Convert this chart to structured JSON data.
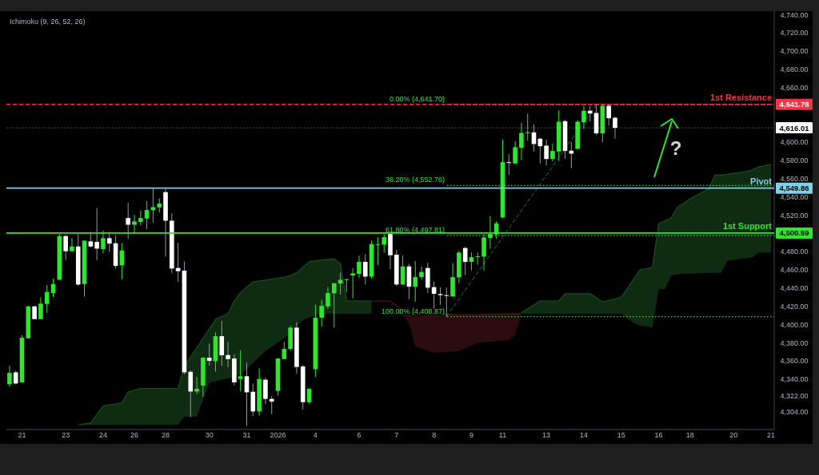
{
  "chart_data": {
    "type": "candlestick",
    "title": "Ichimoku (9, 26, 52, 26)",
    "categories": [
      null,
      null,
      "21",
      null,
      null,
      null,
      null,
      null,
      null,
      "23",
      null,
      null,
      null,
      null,
      null,
      "24",
      null,
      null,
      null,
      null,
      "26",
      null,
      null,
      null,
      null,
      "28",
      null,
      null,
      null,
      null,
      null,
      null,
      "30",
      null,
      null,
      null,
      null,
      null,
      "31",
      null,
      null,
      null,
      null,
      "2026",
      null,
      null,
      null,
      null,
      null,
      "4",
      null,
      null,
      null,
      null,
      null,
      null,
      "6",
      null,
      null,
      null,
      null,
      null,
      "7",
      null,
      null,
      null,
      null,
      null,
      "8",
      null,
      null,
      null,
      null,
      null,
      "9",
      null,
      null,
      null,
      null,
      "11",
      null,
      null,
      null,
      null,
      null,
      null,
      "13",
      null,
      null,
      null,
      null,
      null,
      "14",
      null,
      null,
      null,
      null,
      null,
      "15",
      null,
      null,
      null,
      null,
      null,
      "16",
      null,
      null,
      null,
      null,
      "18",
      null,
      null,
      null,
      null,
      null,
      null,
      "20",
      null,
      null,
      null,
      null,
      null,
      "21"
    ],
    "ohlc": [
      [
        4334.6,
        4355.0,
        4331.7,
        4347.1
      ],
      [
        4347.7,
        4349.2,
        4334.6,
        4335.5
      ],
      [
        4336.7,
        4388.6,
        4336.7,
        4385.7
      ],
      [
        4385.1,
        4420.7,
        4385.1,
        4420.1
      ],
      [
        4420.1,
        4420.7,
        4406.1,
        4406.1
      ],
      [
        4406.1,
        4430.1,
        4406.1,
        4423.1
      ],
      [
        4422.8,
        4443.5,
        4413.1,
        4435.9
      ],
      [
        4434.7,
        4450.5,
        4430.0,
        4444.6
      ],
      [
        4449.3,
        4499.5,
        4449.3,
        4497.2
      ],
      [
        4497.2,
        4499.0,
        4470.9,
        4480.6
      ],
      [
        4480.6,
        4494.9,
        4479.7,
        4485.8
      ],
      [
        4485.8,
        4499.5,
        4442.6,
        4444.1
      ],
      [
        4444.6,
        4492.2,
        4430.9,
        4492.2
      ],
      [
        4491.4,
        4501.9,
        4484.9,
        4485.8
      ],
      [
        4490.8,
        4527.9,
        4470.9,
        4483.5
      ],
      [
        4482.9,
        4503.3,
        4478.2,
        4494.9
      ],
      [
        4494.9,
        4501.9,
        4479.7,
        4489.0
      ],
      [
        4489.3,
        4498.1,
        4461.6,
        4464.5
      ],
      [
        4465.1,
        4489.3,
        4449.9,
        4481.4
      ],
      [
        4517.0,
        4533.7,
        4494.3,
        4509.7
      ],
      [
        4509.7,
        4520.6,
        4499.5,
        4513.3
      ],
      [
        4512.7,
        4525.2,
        4508.9,
        4517.0
      ],
      [
        4516.5,
        4535.7,
        4504.8,
        4525.8
      ],
      [
        4525.5,
        4549.9,
        4512.1,
        4529.0
      ],
      [
        4528.7,
        4538.6,
        4522.9,
        4532.8
      ],
      [
        4545.4,
        4549.9,
        4474.7,
        4514.1
      ],
      [
        4514.1,
        4522.3,
        4456.3,
        4461.6
      ],
      [
        4462.2,
        4490.2,
        4447.0,
        4458.7
      ],
      [
        4459.3,
        4469.5,
        4345.4,
        4347.7
      ],
      [
        4348.3,
        4349.8,
        4298.7,
        4326.7
      ],
      [
        4326.7,
        4342.8,
        4323.8,
        4329.6
      ],
      [
        4333.2,
        4364.4,
        4320.9,
        4363.8
      ],
      [
        4363.8,
        4379.3,
        4355.0,
        4360.3
      ],
      [
        4360.0,
        4391.5,
        4348.6,
        4387.4
      ],
      [
        4387.4,
        4404.1,
        4354.7,
        4366.4
      ],
      [
        4366.7,
        4381.3,
        4353.6,
        4362.3
      ],
      [
        4362.9,
        4367.6,
        4333.2,
        4336.7
      ],
      [
        4340.4,
        4372.0,
        4326.7,
        4343.4
      ],
      [
        4343.4,
        4358.5,
        4289.1,
        4325.8
      ],
      [
        4326.4,
        4335.2,
        4299.9,
        4304.8
      ],
      [
        4304.8,
        4352.1,
        4300.2,
        4340.4
      ],
      [
        4339.6,
        4341.9,
        4312.7,
        4318.6
      ],
      [
        4318.6,
        4322.1,
        4301.6,
        4315.6
      ],
      [
        4327.3,
        4362.9,
        4322.1,
        4362.9
      ],
      [
        4362.3,
        4381.3,
        4362.3,
        4373.4
      ],
      [
        4373.4,
        4398.8,
        4371.1,
        4396.8
      ],
      [
        4396.8,
        4402.6,
        4346.3,
        4353.6
      ],
      [
        4354.2,
        4355.9,
        4306.9,
        4315.0
      ],
      [
        4315.0,
        4330.2,
        4313.3,
        4329.6
      ],
      [
        4351.2,
        4422.2,
        4342.5,
        4407.6
      ],
      [
        4407.6,
        4427.1,
        4397.9,
        4420.7
      ],
      [
        4420.1,
        4441.2,
        4417.2,
        4434.7
      ],
      [
        4434.4,
        4445.5,
        4396.8,
        4445.5
      ],
      [
        4445.2,
        4457.2,
        4433.0,
        4449.3
      ],
      [
        4449.3,
        4450.5,
        4435.9,
        4449.9
      ],
      [
        4454.0,
        4462.2,
        4428.9,
        4456.3
      ],
      [
        4455.7,
        4475.6,
        4451.4,
        4468.9
      ],
      [
        4468.9,
        4477.6,
        4444.1,
        4452.8
      ],
      [
        4452.8,
        4492.2,
        4450.5,
        4488.4
      ],
      [
        4487.8,
        4496.0,
        4465.1,
        4488.4
      ],
      [
        4487.8,
        4499.5,
        4479.1,
        4496.0
      ],
      [
        4499.5,
        4501.0,
        4461.0,
        4476.2
      ],
      [
        4476.8,
        4482.0,
        4442.6,
        4444.1
      ],
      [
        4444.1,
        4476.2,
        4443.5,
        4463.9
      ],
      [
        4463.9,
        4466.8,
        4428.0,
        4441.7
      ],
      [
        4441.7,
        4469.7,
        4425.1,
        4452.2
      ],
      [
        4452.2,
        4463.6,
        4449.3,
        4457.8
      ],
      [
        4462.2,
        4468.0,
        4434.7,
        4440.6
      ],
      [
        4441.2,
        4447.6,
        4417.2,
        4433.9
      ],
      [
        4433.6,
        4441.2,
        4421.6,
        4432.4
      ],
      [
        4432.4,
        4440.6,
        4408.9,
        4431.8
      ],
      [
        4430.9,
        4467.4,
        4430.9,
        4452.2
      ],
      [
        4451.9,
        4481.1,
        4445.5,
        4479.1
      ],
      [
        4484.1,
        4485.8,
        4454.3,
        4468.9
      ],
      [
        4468.9,
        4479.1,
        4459.5,
        4474.1
      ],
      [
        4474.1,
        4479.1,
        4465.9,
        4475.0
      ],
      [
        4474.7,
        4499.5,
        4459.2,
        4495.7
      ],
      [
        4495.1,
        4519.4,
        4483.5,
        4499.5
      ],
      [
        4498.9,
        4513.5,
        4494.3,
        4511.2
      ],
      [
        4517.6,
        4603.1,
        4516.5,
        4578.3
      ],
      [
        4578.3,
        4587.1,
        4564.6,
        4577.5
      ],
      [
        4576.9,
        4601.1,
        4576.9,
        4594.7
      ],
      [
        4594.1,
        4621.5,
        4580.4,
        4610.4
      ],
      [
        4610.4,
        4631.5,
        4601.7,
        4611.0
      ],
      [
        4611.0,
        4619.8,
        4590.0,
        4598.2
      ],
      [
        4604.0,
        4605.2,
        4576.9,
        4595.8
      ],
      [
        4596.4,
        4603.1,
        4574.8,
        4581.8
      ],
      [
        4581.8,
        4598.8,
        4578.9,
        4590.6
      ],
      [
        4590.0,
        4635.2,
        4579.5,
        4622.7
      ],
      [
        4623.3,
        4625.0,
        4582.1,
        4590.6
      ],
      [
        4590.9,
        4600.2,
        4571.6,
        4587.7
      ],
      [
        4592.9,
        4624.5,
        4592.9,
        4622.7
      ],
      [
        4622.1,
        4640.2,
        4614.8,
        4634.7
      ],
      [
        4634.7,
        4640.2,
        4622.7,
        4631.7
      ],
      [
        4632.3,
        4641.7,
        4608.1,
        4609.9
      ],
      [
        4609.9,
        4641.7,
        4600.2,
        4640.2
      ],
      [
        4640.2,
        4641.8,
        4618.3,
        4626.5
      ],
      [
        4627.1,
        4628.0,
        4604.0,
        4616.0
      ],
      null,
      null,
      null,
      null,
      null,
      null,
      null,
      null,
      null,
      null,
      null,
      null,
      null,
      null,
      null,
      null,
      null,
      null,
      null,
      null,
      null,
      null,
      null,
      null,
      null
    ],
    "series": [
      {
        "type": "line",
        "color": "#1b4c20",
        "upper": [
          null,
          null,
          null,
          null,
          null,
          null,
          null,
          null,
          null,
          null,
          null,
          4290,
          null,
          4292,
          null,
          4311,
          null,
          null,
          4314,
          4326,
          null,
          4330,
          null,
          null,
          null,
          null,
          null,
          4330,
          4354,
          null,
          4375,
          null,
          4395,
          4406,
          null,
          4412,
          4426,
          4435,
          null,
          4447,
          null,
          4449,
          null,
          null,
          4452,
          4454,
          4457,
          4463,
          4469,
          null,
          4471,
          null,
          4472,
          4467,
          4426,
          null,
          null,
          null,
          4426,
          null,
          null,
          null,
          null,
          null,
          null,
          null,
          null,
          null,
          null,
          null,
          null,
          null,
          null,
          null,
          null,
          null,
          null,
          null,
          null,
          null,
          null,
          null,
          null,
          null,
          null,
          null,
          null,
          null,
          null,
          null,
          null,
          null,
          null,
          null,
          null,
          null,
          null,
          null,
          null,
          null,
          null,
          null,
          null,
          null,
          null,
          null,
          null,
          null,
          null,
          null,
          null,
          null,
          null,
          null,
          null,
          null,
          null,
          null,
          null,
          null,
          null,
          null,
          null
        ],
        "values": [
          null,
          null,
          null,
          null,
          null,
          null,
          null,
          null,
          null,
          null,
          null,
          4290,
          null,
          4292,
          null,
          4311,
          null,
          null,
          4314,
          4326,
          null,
          4330,
          null,
          null,
          null,
          null,
          null,
          4330,
          4354,
          null,
          4375,
          null,
          4395,
          4406,
          null,
          4412,
          4426,
          4435,
          null,
          4447,
          null,
          4449,
          null,
          null,
          4452,
          4454,
          4457,
          4463,
          4469,
          null,
          4471,
          null,
          4472,
          4467,
          4426,
          null,
          null,
          null,
          4426,
          null,
          null,
          null,
          null,
          null,
          null,
          null,
          null,
          null,
          null,
          null,
          null,
          null,
          null,
          null,
          null,
          null,
          null,
          null,
          null,
          null,
          null,
          null,
          null,
          null,
          null,
          null,
          null,
          null,
          null,
          null,
          null,
          null,
          null,
          null,
          null,
          null,
          null,
          null,
          null,
          null,
          null,
          null,
          null,
          null,
          null,
          null,
          null,
          null,
          null,
          null,
          null,
          null,
          null,
          null,
          null,
          null,
          null,
          null,
          null,
          null,
          null,
          null,
          null
        ],
        "lower": [
          null,
          null,
          null,
          null,
          null,
          null,
          null,
          null,
          null,
          null,
          null,
          4290,
          null,
          4290,
          null,
          4290,
          null,
          null,
          4290,
          4290,
          null,
          4290,
          null,
          null,
          null,
          null,
          null,
          4290,
          4299,
          null,
          4299,
          null,
          4336,
          4338,
          null,
          4341,
          4343,
          4345,
          null,
          4358,
          null,
          4371,
          null,
          null,
          4385,
          4390,
          4398,
          4405,
          4408,
          null,
          4412,
          null,
          4412,
          4412,
          4412,
          null,
          null,
          null,
          4412,
          null,
          null,
          null,
          null,
          null,
          null,
          null,
          null,
          null,
          null,
          null,
          null,
          null,
          null,
          null,
          null,
          null,
          null,
          null,
          null,
          null,
          null,
          null,
          null,
          null,
          null,
          null,
          null,
          null,
          null,
          null,
          null,
          null,
          null,
          null,
          null,
          null,
          null,
          null,
          null,
          null,
          null,
          null,
          null,
          null,
          null,
          null,
          null,
          null,
          null,
          null,
          null,
          null,
          null,
          null,
          null,
          null,
          null,
          null,
          null,
          null,
          null,
          null,
          null
        ]
      },
      {
        "type": "line",
        "color": "#4c171c",
        "upper": [
          null,
          null,
          null,
          null,
          null,
          null,
          null,
          null,
          null,
          null,
          null,
          null,
          null,
          null,
          null,
          null,
          null,
          null,
          null,
          null,
          null,
          null,
          null,
          null,
          null,
          null,
          null,
          null,
          null,
          null,
          null,
          null,
          null,
          null,
          null,
          null,
          null,
          null,
          null,
          null,
          null,
          null,
          null,
          null,
          null,
          null,
          null,
          null,
          null,
          null,
          null,
          null,
          null,
          null,
          null,
          null,
          null,
          null,
          4426,
          null,
          null,
          4426,
          4420,
          null,
          4414,
          4412,
          null,
          null,
          4412,
          null,
          null,
          null,
          4411,
          null,
          null,
          4411,
          null,
          null,
          null,
          null,
          4412,
          4412,
          4412,
          null,
          null,
          null,
          null,
          null,
          null,
          null,
          null,
          null,
          null,
          null,
          null,
          null,
          null,
          null,
          null,
          null,
          null,
          null,
          null,
          null,
          null,
          null,
          null,
          null,
          null,
          null,
          null,
          null,
          null,
          null,
          null,
          null,
          null,
          null,
          null,
          null,
          null,
          null,
          null
        ],
        "values": [
          null,
          null,
          null,
          null,
          null,
          null,
          null,
          null,
          null,
          null,
          null,
          null,
          null,
          null,
          null,
          null,
          null,
          null,
          null,
          null,
          null,
          null,
          null,
          null,
          null,
          null,
          null,
          null,
          null,
          null,
          null,
          null,
          null,
          null,
          null,
          null,
          null,
          null,
          null,
          null,
          null,
          null,
          null,
          null,
          null,
          null,
          null,
          null,
          null,
          null,
          null,
          null,
          null,
          null,
          null,
          null,
          null,
          null,
          4426,
          null,
          null,
          4426,
          4420,
          null,
          4414,
          4412,
          null,
          null,
          4412,
          null,
          null,
          null,
          4411,
          null,
          null,
          4411,
          null,
          null,
          null,
          null,
          4412,
          4412,
          4412,
          null,
          null,
          null,
          null,
          null,
          null,
          null,
          null,
          null,
          null,
          null,
          null,
          null,
          null,
          null,
          null,
          null,
          null,
          null,
          null,
          null,
          null,
          null,
          null,
          null,
          null,
          null,
          null,
          null,
          null,
          null,
          null,
          null,
          null,
          null,
          null,
          null,
          null,
          null,
          null
        ],
        "lower": [
          null,
          null,
          null,
          null,
          null,
          null,
          null,
          null,
          null,
          null,
          null,
          null,
          null,
          null,
          null,
          null,
          null,
          null,
          null,
          null,
          null,
          null,
          null,
          null,
          null,
          null,
          null,
          null,
          null,
          null,
          null,
          null,
          null,
          null,
          null,
          null,
          null,
          null,
          null,
          null,
          null,
          null,
          null,
          null,
          null,
          null,
          null,
          null,
          null,
          null,
          null,
          null,
          null,
          null,
          null,
          null,
          null,
          null,
          4426,
          null,
          null,
          4426,
          4419,
          null,
          4402,
          4376,
          null,
          null,
          4369,
          null,
          null,
          null,
          4371,
          null,
          null,
          4380,
          null,
          null,
          null,
          null,
          4383,
          4389,
          4411,
          null,
          null,
          null,
          null,
          null,
          null,
          null,
          null,
          null,
          null,
          null,
          null,
          null,
          null,
          null,
          null,
          null,
          null,
          null,
          null,
          null,
          null,
          null,
          null,
          null,
          null,
          null,
          null,
          null,
          null,
          null,
          null,
          null,
          null,
          null,
          null,
          null,
          null,
          null,
          null
        ]
      },
      {
        "type": "line",
        "color": "#1b4c20",
        "upper": [
          null,
          null,
          null,
          null,
          null,
          null,
          null,
          null,
          null,
          null,
          null,
          null,
          null,
          null,
          null,
          null,
          null,
          null,
          null,
          null,
          null,
          null,
          null,
          null,
          null,
          null,
          null,
          null,
          null,
          null,
          null,
          null,
          null,
          null,
          null,
          null,
          null,
          null,
          null,
          null,
          null,
          null,
          null,
          null,
          null,
          null,
          null,
          null,
          null,
          null,
          null,
          null,
          null,
          null,
          null,
          null,
          null,
          null,
          null,
          null,
          null,
          null,
          null,
          null,
          null,
          null,
          null,
          null,
          null,
          null,
          null,
          null,
          null,
          null,
          null,
          null,
          null,
          null,
          null,
          null,
          null,
          null,
          4413,
          null,
          null,
          4426,
          null,
          null,
          4426,
          4434,
          null,
          null,
          null,
          4434,
          null,
          4425,
          null,
          null,
          4430,
          null,
          4450,
          4460,
          null,
          4463,
          4511,
          4514,
          4517,
          4529,
          4533,
          4538,
          null,
          null,
          4549,
          4564,
          4564,
          4565,
          4566,
          null,
          4568,
          4570,
          4573,
          null,
          4576
        ],
        "values": [
          null,
          null,
          null,
          null,
          null,
          null,
          null,
          null,
          null,
          null,
          null,
          null,
          null,
          null,
          null,
          null,
          null,
          null,
          null,
          null,
          null,
          null,
          null,
          null,
          null,
          null,
          null,
          null,
          null,
          null,
          null,
          null,
          null,
          null,
          null,
          null,
          null,
          null,
          null,
          null,
          null,
          null,
          null,
          null,
          null,
          null,
          null,
          null,
          null,
          null,
          null,
          null,
          null,
          null,
          null,
          null,
          null,
          null,
          null,
          null,
          null,
          null,
          null,
          null,
          null,
          null,
          null,
          null,
          null,
          null,
          null,
          null,
          null,
          null,
          null,
          null,
          null,
          null,
          null,
          null,
          null,
          null,
          4413,
          null,
          null,
          4426,
          null,
          null,
          4426,
          4434,
          null,
          null,
          null,
          4434,
          null,
          4425,
          null,
          null,
          4430,
          null,
          4450,
          4460,
          null,
          4463,
          4511,
          4514,
          4517,
          4529,
          4533,
          4538,
          null,
          null,
          4549,
          4564,
          4564,
          4565,
          4566,
          null,
          4568,
          4570,
          4573,
          null,
          4576
        ],
        "lower": [
          null,
          null,
          null,
          null,
          null,
          null,
          null,
          null,
          null,
          null,
          null,
          null,
          null,
          null,
          null,
          null,
          null,
          null,
          null,
          null,
          null,
          null,
          null,
          null,
          null,
          null,
          null,
          null,
          null,
          null,
          null,
          null,
          null,
          null,
          null,
          null,
          null,
          null,
          null,
          null,
          null,
          null,
          null,
          null,
          null,
          null,
          null,
          null,
          null,
          null,
          null,
          null,
          null,
          null,
          null,
          null,
          null,
          null,
          null,
          null,
          null,
          null,
          null,
          null,
          null,
          null,
          null,
          null,
          null,
          null,
          null,
          null,
          null,
          null,
          null,
          null,
          null,
          null,
          null,
          null,
          null,
          null,
          4412,
          null,
          null,
          4412,
          null,
          null,
          4412,
          4412,
          null,
          null,
          null,
          4412,
          null,
          4412,
          null,
          null,
          4412,
          null,
          4402,
          4399,
          null,
          4397,
          4439,
          4439,
          4454,
          4455,
          4456,
          4456,
          null,
          null,
          4457,
          4457,
          4457,
          4470,
          4471,
          null,
          4473,
          4474,
          4479,
          null,
          4479
        ]
      },
      {
        "type": "line",
        "color": "#1e7a28",
        "line_style": "dashed",
        "values": [
          null,
          null,
          null,
          null,
          null,
          null,
          null,
          null,
          null,
          null,
          null,
          null,
          null,
          null,
          null,
          null,
          null,
          null,
          null,
          null,
          null,
          null,
          null,
          null,
          null,
          null,
          null,
          null,
          null,
          null,
          null,
          null,
          null,
          null,
          null,
          null,
          null,
          null,
          null,
          null,
          null,
          null,
          null,
          null,
          null,
          null,
          null,
          null,
          null,
          null,
          null,
          null,
          null,
          null,
          null,
          null,
          null,
          null,
          null,
          null,
          null,
          null,
          null,
          null,
          null,
          null,
          null,
          null,
          null,
          null,
          4408.87,
          null,
          null,
          null,
          null,
          null,
          null,
          null,
          null,
          null,
          null,
          null,
          null,
          null,
          null,
          null,
          null,
          null,
          null,
          null,
          null,
          null,
          null,
          null,
          4641.7,
          null,
          null,
          null,
          null,
          null,
          null,
          null,
          null,
          null,
          null,
          null,
          null,
          null,
          null,
          null,
          null,
          null,
          null,
          null,
          null,
          null,
          null,
          null,
          null,
          null,
          null,
          null,
          null
        ]
      }
    ],
    "ylim": [
      4285,
      4744
    ],
    "yticks": [
      {
        "value": 4304,
        "label": "4,304.00"
      },
      {
        "value": 4322,
        "label": "4,322.00"
      },
      {
        "value": 4340,
        "label": "4,340.00"
      },
      {
        "value": 4360,
        "label": "4,360.00"
      },
      {
        "value": 4380,
        "label": "4,380.00"
      },
      {
        "value": 4400,
        "label": "4,400.00"
      },
      {
        "value": 4420,
        "label": "4,420.00"
      },
      {
        "value": 4440,
        "label": "4,440.00"
      },
      {
        "value": 4460,
        "label": "4,460.00"
      },
      {
        "value": 4480,
        "label": "4,480.00"
      },
      {
        "value": 4520,
        "label": "4,520.00"
      },
      {
        "value": 4540,
        "label": "4,540.00"
      },
      {
        "value": 4560,
        "label": "4,560.00"
      },
      {
        "value": 4580,
        "label": "4,580.00"
      },
      {
        "value": 4600,
        "label": "4,600.00"
      },
      {
        "value": 4660,
        "label": "4,660.00"
      },
      {
        "value": 4680,
        "label": "4,680.00"
      },
      {
        "value": 4700,
        "label": "4,700.00"
      },
      {
        "value": 4720,
        "label": "4,720.00"
      },
      {
        "value": 4740,
        "label": "4,740.00"
      }
    ],
    "ref_lines": [
      {
        "axis": "y",
        "value": 4641.78,
        "label": "1st Resistance",
        "color": "#f23645",
        "line_style": "dashed"
      },
      {
        "axis": "y",
        "value": 4616.01,
        "label": null,
        "color": "#ffffff",
        "line_style": "dotted"
      },
      {
        "axis": "y",
        "value": 4549.86,
        "label": "Pivot",
        "color": "#7fd0e3",
        "line_style": "solid"
      },
      {
        "axis": "y",
        "value": 4500.59,
        "label": "1st Support",
        "color": "#2ee62e",
        "line_style": "solid"
      },
      {
        "axis": "y",
        "value": 4641.7,
        "label": "0.00% (4,641.70)",
        "color": "#2ee62e",
        "line_style": "dotted"
      },
      {
        "axis": "y",
        "value": 4552.76,
        "label": "38.20% (4,552.76)",
        "color": "#2ee62e",
        "line_style": "dotted"
      },
      {
        "axis": "y",
        "value": 4497.81,
        "label": "61.80% (4,497.81)",
        "color": "#2ee62e",
        "line_style": "dotted"
      },
      {
        "axis": "y",
        "value": 4408.87,
        "label": "100.00% (4,408.87)",
        "color": "#2ee62e",
        "line_style": "dotted"
      }
    ],
    "annotations": [
      "?",
      "4,641.78",
      "4,616.01",
      "4,549.86",
      "4,500.59"
    ]
  }
}
